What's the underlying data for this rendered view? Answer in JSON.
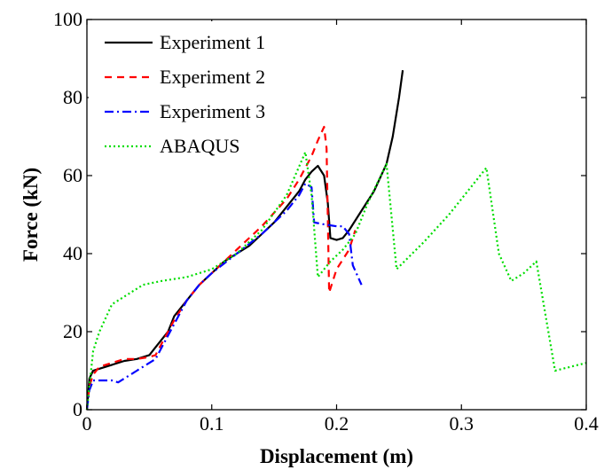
{
  "chart_data": {
    "type": "line",
    "title": "",
    "xlabel": "Displacement (m)",
    "ylabel": "Force (kN)",
    "xlim": [
      0,
      0.4
    ],
    "ylim": [
      0,
      100
    ],
    "xticks": [
      0,
      0.1,
      0.2,
      0.3,
      0.4
    ],
    "xtick_labels": [
      "0",
      "0.1",
      "0.2",
      "0.3",
      "0.4"
    ],
    "yticks": [
      0,
      20,
      40,
      60,
      80,
      100
    ],
    "ytick_labels": [
      "0",
      "20",
      "40",
      "60",
      "80",
      "100"
    ],
    "grid": false,
    "legend_position": "top-left",
    "series": [
      {
        "name": "Experiment 1",
        "color": "#000000",
        "dash": "solid",
        "points": [
          [
            0,
            0
          ],
          [
            0.002,
            8
          ],
          [
            0.005,
            10
          ],
          [
            0.01,
            10.5
          ],
          [
            0.02,
            11.5
          ],
          [
            0.03,
            12.5
          ],
          [
            0.04,
            13
          ],
          [
            0.05,
            14
          ],
          [
            0.055,
            16
          ],
          [
            0.06,
            18
          ],
          [
            0.065,
            20
          ],
          [
            0.07,
            24
          ],
          [
            0.08,
            28
          ],
          [
            0.09,
            32
          ],
          [
            0.1,
            35
          ],
          [
            0.11,
            38
          ],
          [
            0.12,
            40
          ],
          [
            0.13,
            42
          ],
          [
            0.14,
            45
          ],
          [
            0.15,
            48
          ],
          [
            0.16,
            52
          ],
          [
            0.17,
            56
          ],
          [
            0.175,
            59
          ],
          [
            0.18,
            61
          ],
          [
            0.185,
            62.5
          ],
          [
            0.19,
            60
          ],
          [
            0.193,
            53
          ],
          [
            0.195,
            44
          ],
          [
            0.2,
            43.5
          ],
          [
            0.205,
            44
          ],
          [
            0.21,
            46
          ],
          [
            0.22,
            51
          ],
          [
            0.23,
            56
          ],
          [
            0.24,
            63
          ],
          [
            0.245,
            70
          ],
          [
            0.25,
            80
          ],
          [
            0.253,
            87
          ]
        ]
      },
      {
        "name": "Experiment 2",
        "color": "#ff0000",
        "dash": "8,6",
        "points": [
          [
            0,
            0
          ],
          [
            0.002,
            6
          ],
          [
            0.005,
            9
          ],
          [
            0.01,
            11
          ],
          [
            0.02,
            12
          ],
          [
            0.03,
            13
          ],
          [
            0.04,
            13
          ],
          [
            0.05,
            13.5
          ],
          [
            0.055,
            14
          ],
          [
            0.06,
            17
          ],
          [
            0.07,
            23
          ],
          [
            0.08,
            28
          ],
          [
            0.09,
            32
          ],
          [
            0.1,
            35
          ],
          [
            0.12,
            41
          ],
          [
            0.14,
            47
          ],
          [
            0.16,
            54
          ],
          [
            0.17,
            59
          ],
          [
            0.18,
            65
          ],
          [
            0.185,
            69
          ],
          [
            0.19,
            72.5
          ],
          [
            0.192,
            67
          ],
          [
            0.194,
            30
          ],
          [
            0.2,
            36
          ],
          [
            0.21,
            41
          ],
          [
            0.215,
            46
          ]
        ]
      },
      {
        "name": "Experiment 3",
        "color": "#0000ff",
        "dash": "10,4,2,4",
        "points": [
          [
            0,
            0
          ],
          [
            0.002,
            5
          ],
          [
            0.005,
            7.5
          ],
          [
            0.01,
            7.5
          ],
          [
            0.02,
            7.5
          ],
          [
            0.025,
            7
          ],
          [
            0.03,
            8
          ],
          [
            0.04,
            10
          ],
          [
            0.05,
            12
          ],
          [
            0.055,
            13
          ],
          [
            0.06,
            16
          ],
          [
            0.07,
            22
          ],
          [
            0.08,
            28
          ],
          [
            0.09,
            32
          ],
          [
            0.1,
            35
          ],
          [
            0.12,
            40
          ],
          [
            0.14,
            45
          ],
          [
            0.16,
            51
          ],
          [
            0.17,
            55
          ],
          [
            0.175,
            58
          ],
          [
            0.18,
            57
          ],
          [
            0.182,
            48
          ],
          [
            0.19,
            47.5
          ],
          [
            0.2,
            47
          ],
          [
            0.205,
            47
          ],
          [
            0.21,
            45
          ],
          [
            0.213,
            37
          ],
          [
            0.22,
            32
          ]
        ]
      },
      {
        "name": "ABAQUS",
        "color": "#00dd00",
        "dash": "2,3",
        "points": [
          [
            0,
            0
          ],
          [
            0.005,
            15
          ],
          [
            0.01,
            20
          ],
          [
            0.02,
            27
          ],
          [
            0.03,
            29
          ],
          [
            0.045,
            32
          ],
          [
            0.06,
            33
          ],
          [
            0.08,
            34
          ],
          [
            0.1,
            36
          ],
          [
            0.12,
            40
          ],
          [
            0.14,
            46
          ],
          [
            0.16,
            55
          ],
          [
            0.175,
            66
          ],
          [
            0.18,
            55
          ],
          [
            0.185,
            34
          ],
          [
            0.195,
            38
          ],
          [
            0.205,
            41
          ],
          [
            0.215,
            45
          ],
          [
            0.225,
            53
          ],
          [
            0.24,
            63
          ],
          [
            0.248,
            36
          ],
          [
            0.27,
            43
          ],
          [
            0.29,
            50
          ],
          [
            0.32,
            62
          ],
          [
            0.33,
            40
          ],
          [
            0.34,
            33
          ],
          [
            0.35,
            35
          ],
          [
            0.36,
            38
          ],
          [
            0.375,
            10
          ],
          [
            0.4,
            12
          ]
        ]
      }
    ]
  }
}
